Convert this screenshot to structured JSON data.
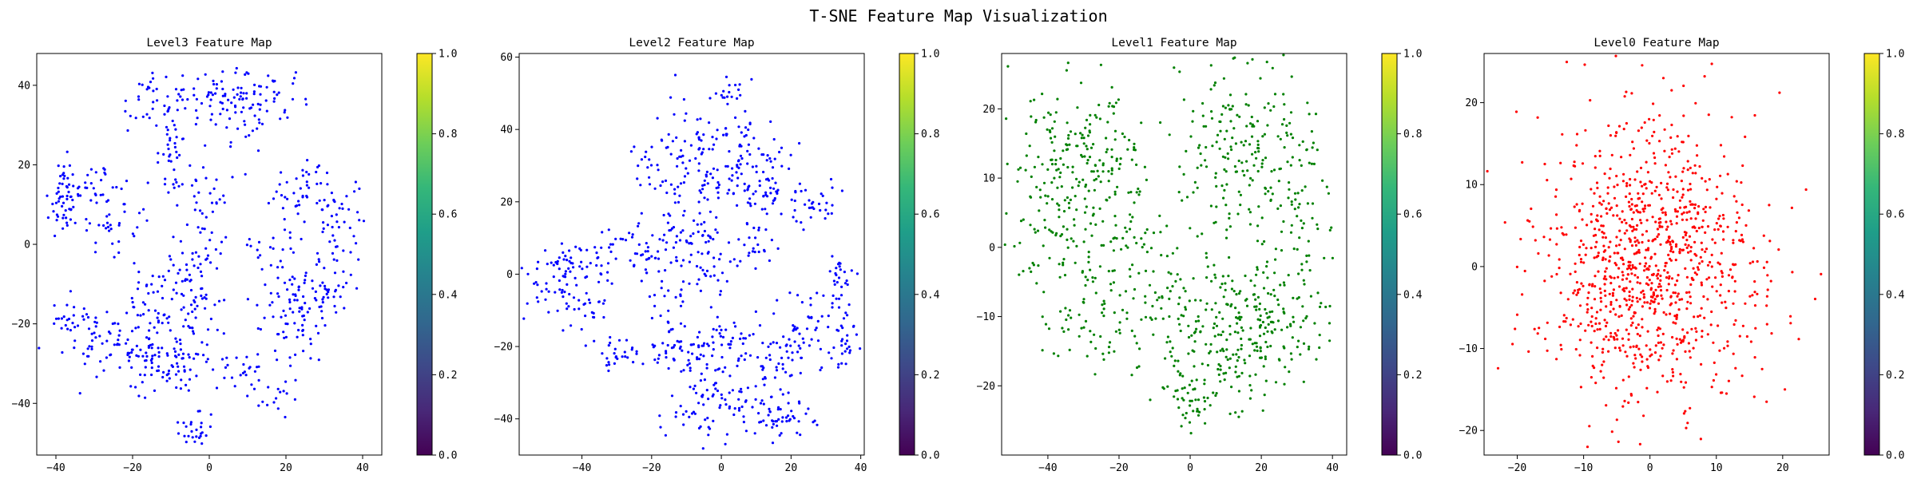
{
  "figure": {
    "title": "T-SNE Feature Map Visualization"
  },
  "chart_data": [
    {
      "type": "scatter",
      "title": "Level3 Feature Map",
      "xlabel": "",
      "ylabel": "",
      "xlim": [
        -45,
        45
      ],
      "ylim": [
        -53,
        48
      ],
      "xticks": [
        -40,
        -20,
        0,
        20,
        40
      ],
      "yticks": [
        -40,
        -20,
        0,
        20,
        40
      ],
      "color": "#0000ff",
      "n_points": 1000,
      "colorbar": {
        "colormap": "viridis",
        "range": [
          0,
          1
        ],
        "ticks": [
          "0.0",
          "0.2",
          "0.4",
          "0.6",
          "0.8",
          "1.0"
        ]
      },
      "clusters": [
        {
          "cx": -38,
          "cy": 11,
          "sx": 2,
          "sy": 5,
          "n": 45
        },
        {
          "cx": -30,
          "cy": 15,
          "sx": 6,
          "sy": 3,
          "n": 40
        },
        {
          "cx": -25,
          "cy": 4,
          "sx": 5,
          "sy": 3,
          "n": 30
        },
        {
          "cx": -34,
          "cy": -20,
          "sx": 4,
          "sy": 3,
          "n": 40
        },
        {
          "cx": -22,
          "cy": -26,
          "sx": 6,
          "sy": 4,
          "n": 70
        },
        {
          "cx": -12,
          "cy": -32,
          "sx": 5,
          "sy": 3,
          "n": 50
        },
        {
          "cx": -15,
          "cy": 36,
          "sx": 4,
          "sy": 4,
          "n": 30
        },
        {
          "cx": -9,
          "cy": 26,
          "sx": 3,
          "sy": 8,
          "n": 45
        },
        {
          "cx": 1,
          "cy": 38,
          "sx": 5,
          "sy": 3,
          "n": 40
        },
        {
          "cx": 10,
          "cy": 34,
          "sx": 6,
          "sy": 4,
          "n": 50
        },
        {
          "cx": 15,
          "cy": 38,
          "sx": 5,
          "sy": 3,
          "n": 25
        },
        {
          "cx": -1,
          "cy": 8,
          "sx": 3,
          "sy": 10,
          "n": 45
        },
        {
          "cx": -5,
          "cy": -10,
          "sx": 4,
          "sy": 6,
          "n": 45
        },
        {
          "cx": -14,
          "cy": -15,
          "sx": 4,
          "sy": 6,
          "n": 40
        },
        {
          "cx": -3,
          "cy": -24,
          "sx": 4,
          "sy": 6,
          "n": 35
        },
        {
          "cx": 6,
          "cy": -32,
          "sx": 4,
          "sy": 3,
          "n": 25
        },
        {
          "cx": -3,
          "cy": -46,
          "sx": 2.5,
          "sy": 2.5,
          "n": 25
        },
        {
          "cx": 27,
          "cy": 13,
          "sx": 6,
          "sy": 5,
          "n": 55
        },
        {
          "cx": 34,
          "cy": 2,
          "sx": 4,
          "sy": 7,
          "n": 45
        },
        {
          "cx": 17,
          "cy": -1,
          "sx": 3,
          "sy": 3,
          "n": 20
        },
        {
          "cx": 20,
          "cy": -22,
          "sx": 4,
          "sy": 5,
          "n": 45
        },
        {
          "cx": 26,
          "cy": -12,
          "sx": 5,
          "sy": 4,
          "n": 40
        },
        {
          "cx": 18,
          "cy": -38,
          "sx": 3,
          "sy": 3,
          "n": 15
        },
        {
          "cx": 31,
          "cy": -13,
          "sx": 3,
          "sy": 3,
          "n": 20
        }
      ]
    },
    {
      "type": "scatter",
      "title": "Level2 Feature Map",
      "xlabel": "",
      "ylabel": "",
      "xlim": [
        -58,
        41
      ],
      "ylim": [
        -50,
        61
      ],
      "xticks": [
        -40,
        -20,
        0,
        20,
        40
      ],
      "yticks": [
        -40,
        -20,
        0,
        20,
        40,
        60
      ],
      "color": "#0000ff",
      "n_points": 1000,
      "colorbar": {
        "colormap": "viridis",
        "range": [
          0,
          1
        ],
        "ticks": [
          "0.0",
          "0.2",
          "0.4",
          "0.6",
          "0.8",
          "1.0"
        ]
      },
      "clusters": [
        {
          "cx": -48,
          "cy": -2,
          "sx": 4,
          "sy": 4,
          "n": 45
        },
        {
          "cx": -38,
          "cy": 3,
          "sx": 5,
          "sy": 4,
          "n": 40
        },
        {
          "cx": -40,
          "cy": -10,
          "sx": 4,
          "sy": 3,
          "n": 25
        },
        {
          "cx": -25,
          "cy": 6,
          "sx": 5,
          "sy": 4,
          "n": 35
        },
        {
          "cx": -30,
          "cy": -22,
          "sx": 4,
          "sy": 3,
          "n": 30
        },
        {
          "cx": -8,
          "cy": 30,
          "sx": 5,
          "sy": 9,
          "n": 90
        },
        {
          "cx": 5,
          "cy": 30,
          "sx": 5,
          "sy": 8,
          "n": 70
        },
        {
          "cx": 2,
          "cy": 50,
          "sx": 2,
          "sy": 2,
          "n": 15
        },
        {
          "cx": 12,
          "cy": 28,
          "sx": 4,
          "sy": 8,
          "n": 40
        },
        {
          "cx": 25,
          "cy": 20,
          "sx": 6,
          "sy": 4,
          "n": 40
        },
        {
          "cx": -15,
          "cy": 5,
          "sx": 4,
          "sy": 8,
          "n": 50
        },
        {
          "cx": -3,
          "cy": 6,
          "sx": 4,
          "sy": 7,
          "n": 45
        },
        {
          "cx": 10,
          "cy": 8,
          "sx": 4,
          "sy": 4,
          "n": 25
        },
        {
          "cx": -14,
          "cy": -18,
          "sx": 4,
          "sy": 5,
          "n": 40
        },
        {
          "cx": -2,
          "cy": -20,
          "sx": 5,
          "sy": 6,
          "n": 60
        },
        {
          "cx": 12,
          "cy": -28,
          "sx": 7,
          "sy": 8,
          "n": 90
        },
        {
          "cx": 25,
          "cy": -15,
          "sx": 6,
          "sy": 6,
          "n": 60
        },
        {
          "cx": -4,
          "cy": -38,
          "sx": 5,
          "sy": 4,
          "n": 45
        },
        {
          "cx": 18,
          "cy": -40,
          "sx": 5,
          "sy": 3,
          "n": 40
        },
        {
          "cx": 36,
          "cy": -18,
          "sx": 2,
          "sy": 5,
          "n": 25
        },
        {
          "cx": 34,
          "cy": 1,
          "sx": 2,
          "sy": 4,
          "n": 20
        },
        {
          "cx": -20,
          "cy": 30,
          "sx": 3,
          "sy": 5,
          "n": 20
        }
      ]
    },
    {
      "type": "scatter",
      "title": "Level1 Feature Map",
      "xlabel": "",
      "ylabel": "",
      "xlim": [
        -53,
        44
      ],
      "ylim": [
        -30,
        28
      ],
      "xticks": [
        -40,
        -20,
        0,
        20,
        40
      ],
      "yticks": [
        -20,
        -10,
        0,
        10,
        20
      ],
      "color": "#008000",
      "n_points": 1000,
      "colorbar": {
        "colormap": "viridis",
        "range": [
          0,
          1
        ],
        "ticks": [
          "0.0",
          "0.2",
          "0.4",
          "0.6",
          "0.8",
          "1.0"
        ]
      },
      "clusters": [
        {
          "cx": -38,
          "cy": 8,
          "sx": 8,
          "sy": 8,
          "n": 180
        },
        {
          "cx": -24,
          "cy": 14,
          "sx": 6,
          "sy": 5,
          "n": 70
        },
        {
          "cx": -20,
          "cy": -2,
          "sx": 7,
          "sy": 6,
          "n": 80
        },
        {
          "cx": -30,
          "cy": -12,
          "sx": 6,
          "sy": 4,
          "n": 40
        },
        {
          "cx": 15,
          "cy": 14,
          "sx": 10,
          "sy": 6,
          "n": 190
        },
        {
          "cx": 30,
          "cy": 8,
          "sx": 5,
          "sy": 6,
          "n": 60
        },
        {
          "cx": 0,
          "cy": -10,
          "sx": 10,
          "sy": 6,
          "n": 120
        },
        {
          "cx": 22,
          "cy": -11,
          "sx": 9,
          "sy": 5,
          "n": 160
        },
        {
          "cx": 10,
          "cy": -18,
          "sx": 8,
          "sy": 4,
          "n": 70
        },
        {
          "cx": 0,
          "cy": -22,
          "sx": 4,
          "sy": 2,
          "n": 30
        }
      ]
    },
    {
      "type": "scatter",
      "title": "Level0 Feature Map",
      "xlabel": "",
      "ylabel": "",
      "xlim": [
        -25,
        27
      ],
      "ylim": [
        -23,
        26
      ],
      "xticks": [
        -20,
        -10,
        0,
        10,
        20
      ],
      "yticks": [
        -20,
        -10,
        0,
        10,
        20
      ],
      "color": "#ff0000",
      "n_points": 1000,
      "colorbar": {
        "colormap": "viridis",
        "range": [
          0,
          1
        ],
        "ticks": [
          "0.0",
          "0.2",
          "0.4",
          "0.6",
          "0.8",
          "1.0"
        ]
      },
      "clusters": [
        {
          "cx": 0,
          "cy": 0,
          "sx": 8.5,
          "sy": 8.5,
          "n": 1000
        }
      ]
    }
  ],
  "colors": {
    "viridis": [
      "#440154",
      "#482878",
      "#3e4989",
      "#31688e",
      "#26828e",
      "#1f9e89",
      "#35b779",
      "#6ece58",
      "#b5de2b",
      "#fde725"
    ]
  }
}
